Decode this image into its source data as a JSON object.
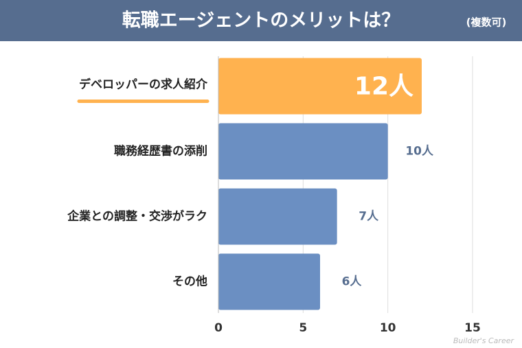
{
  "chart_data": {
    "type": "barh",
    "title": "転職エージェントのメリットは？",
    "subtitle": "(複数可)",
    "categories": [
      "デベロッパーの求人紹介",
      "職務経歴書の添削",
      "企業との調整・交渉がラク",
      "その他"
    ],
    "values": [
      12,
      10,
      7,
      6
    ],
    "value_labels": [
      "12人",
      "10人",
      "7人",
      "6人"
    ],
    "colors": [
      "#ffb24f",
      "#6b8fc2",
      "#6b8fc2",
      "#6b8fc2"
    ],
    "xlim": [
      0,
      15
    ],
    "xticks": [
      0,
      5,
      10,
      15
    ],
    "grid": true,
    "watermark": "Builder's Career"
  }
}
